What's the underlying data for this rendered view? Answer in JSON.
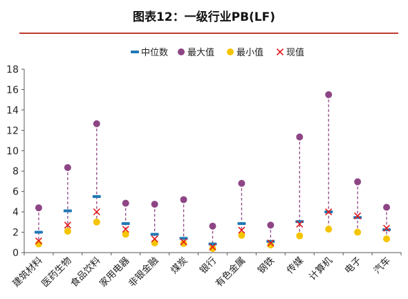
{
  "header": {
    "title": "图表12：一级行业PB(LF)"
  },
  "colors": {
    "median": "#1f78b4",
    "max": "#8e4585",
    "min": "#f5c400",
    "current": "#e41a1c",
    "rule": "#c0392b"
  },
  "chart_data": {
    "type": "scatter",
    "title": "",
    "xlabel": "",
    "ylabel": "",
    "ylim": [
      0,
      18
    ],
    "yticks": [
      0,
      2,
      4,
      6,
      8,
      10,
      12,
      14,
      16,
      18
    ],
    "grid": false,
    "legend": "top",
    "categories": [
      "建筑材料",
      "医药生物",
      "食品饮料",
      "家用电器",
      "非银金融",
      "煤炭",
      "银行",
      "有色金属",
      "钢铁",
      "传媒",
      "计算机",
      "电子",
      "汽车"
    ],
    "series": [
      {
        "name": "中位数",
        "marker": "dash",
        "values": [
          2.0,
          4.1,
          5.5,
          2.85,
          1.8,
          1.4,
          0.85,
          2.85,
          1.1,
          3.05,
          4.0,
          3.45,
          2.25
        ]
      },
      {
        "name": "最大值",
        "marker": "circle",
        "values": [
          4.4,
          8.35,
          12.65,
          4.85,
          4.75,
          5.2,
          2.6,
          6.8,
          2.7,
          11.35,
          15.5,
          6.95,
          4.45
        ]
      },
      {
        "name": "最小值",
        "marker": "circle",
        "values": [
          0.85,
          2.1,
          3.0,
          1.8,
          0.95,
          0.9,
          0.4,
          1.7,
          0.75,
          1.65,
          2.3,
          2.0,
          1.35
        ]
      },
      {
        "name": "现值",
        "marker": "x",
        "values": [
          1.15,
          2.7,
          4.0,
          2.3,
          1.35,
          1.05,
          0.55,
          2.2,
          0.95,
          2.8,
          4.0,
          3.6,
          2.4
        ]
      }
    ]
  }
}
